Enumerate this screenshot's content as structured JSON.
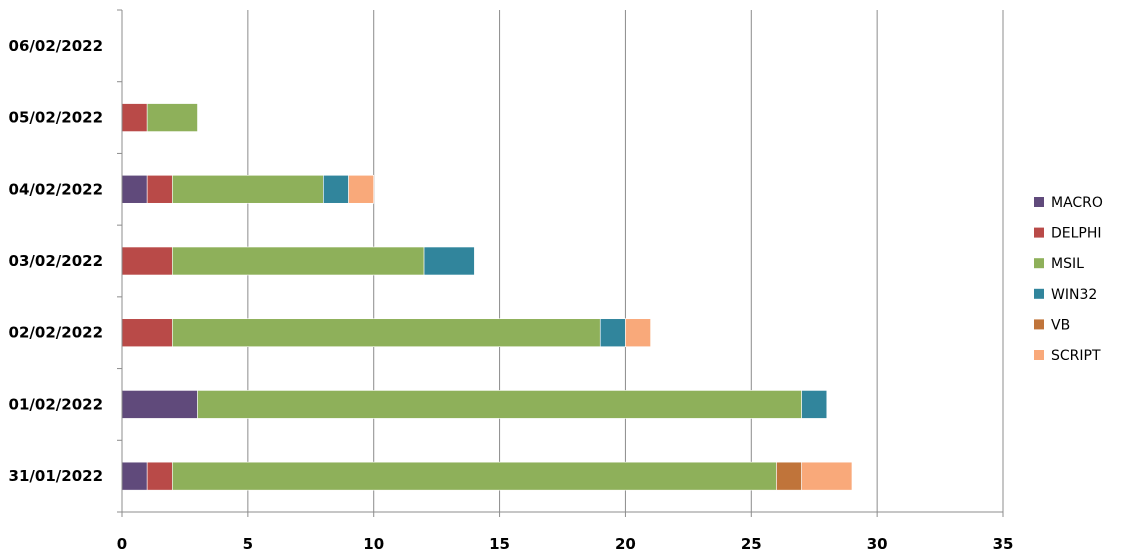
{
  "chart_data": {
    "type": "bar",
    "orientation": "horizontal",
    "stacked": true,
    "categories": [
      "31/01/2022",
      "01/02/2022",
      "02/02/2022",
      "03/02/2022",
      "04/02/2022",
      "05/02/2022",
      "06/02/2022"
    ],
    "series": [
      {
        "name": "MACRO",
        "color": "#604a7b",
        "values": [
          1,
          3,
          0,
          0,
          1,
          0,
          0
        ]
      },
      {
        "name": "DELPHI",
        "color": "#b94a48",
        "values": [
          1,
          0,
          2,
          2,
          1,
          1,
          0
        ]
      },
      {
        "name": "MSIL",
        "color": "#8eb05a",
        "values": [
          24,
          24,
          17,
          10,
          6,
          2,
          0
        ]
      },
      {
        "name": "WIN32",
        "color": "#31859c",
        "values": [
          0,
          1,
          1,
          2,
          1,
          0,
          0
        ]
      },
      {
        "name": "VB",
        "color": "#c0743a",
        "values": [
          1,
          0,
          0,
          0,
          0,
          0,
          0
        ]
      },
      {
        "name": "SCRIPT",
        "color": "#f9a97a",
        "values": [
          2,
          0,
          1,
          0,
          1,
          0,
          0
        ]
      }
    ],
    "xlim": [
      0,
      35
    ],
    "xticks": [
      0,
      5,
      10,
      15,
      20,
      25,
      30,
      35
    ],
    "xtick_labels": [
      "0",
      "5",
      "10",
      "15",
      "20",
      "25",
      "30",
      "35"
    ],
    "grid": "vertical",
    "legend_position": "right"
  }
}
